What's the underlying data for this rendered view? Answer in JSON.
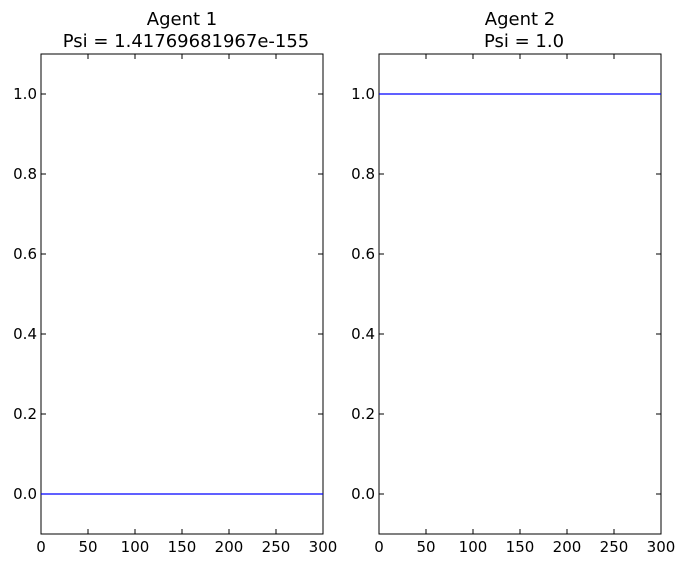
{
  "chart_data": [
    {
      "type": "line",
      "title": "Agent 1",
      "subtitle": "Psi = 1.41769681967e-155",
      "xlabel": "",
      "ylabel": "",
      "xlim": [
        0,
        300
      ],
      "ylim": [
        -0.1,
        1.1
      ],
      "x_ticks": [
        0,
        50,
        100,
        150,
        200,
        250,
        300
      ],
      "x_tick_labels": [
        "0",
        "50",
        "100",
        "150",
        "200",
        "250",
        "300"
      ],
      "y_ticks": [
        0.0,
        0.2,
        0.4,
        0.6,
        0.8,
        1.0
      ],
      "y_tick_labels": [
        "0.0",
        "0.2",
        "0.4",
        "0.6",
        "0.8",
        "1.0"
      ],
      "grid": false,
      "series": [
        {
          "color": "#0000ff",
          "x": [
            0,
            300
          ],
          "y": [
            0.0,
            0.0
          ]
        }
      ]
    },
    {
      "type": "line",
      "title": "Agent 2",
      "subtitle": "Psi = 1.0",
      "xlabel": "",
      "ylabel": "",
      "xlim": [
        0,
        300
      ],
      "ylim": [
        -0.1,
        1.1
      ],
      "x_ticks": [
        0,
        50,
        100,
        150,
        200,
        250,
        300
      ],
      "x_tick_labels": [
        "0",
        "50",
        "100",
        "150",
        "200",
        "250",
        "300"
      ],
      "y_ticks": [
        0.0,
        0.2,
        0.4,
        0.6,
        0.8,
        1.0
      ],
      "y_tick_labels": [
        "0.0",
        "0.2",
        "0.4",
        "0.6",
        "0.8",
        "1.0"
      ],
      "grid": false,
      "series": [
        {
          "color": "#0000ff",
          "x": [
            0,
            300
          ],
          "y": [
            1.0,
            1.0
          ]
        }
      ]
    }
  ]
}
